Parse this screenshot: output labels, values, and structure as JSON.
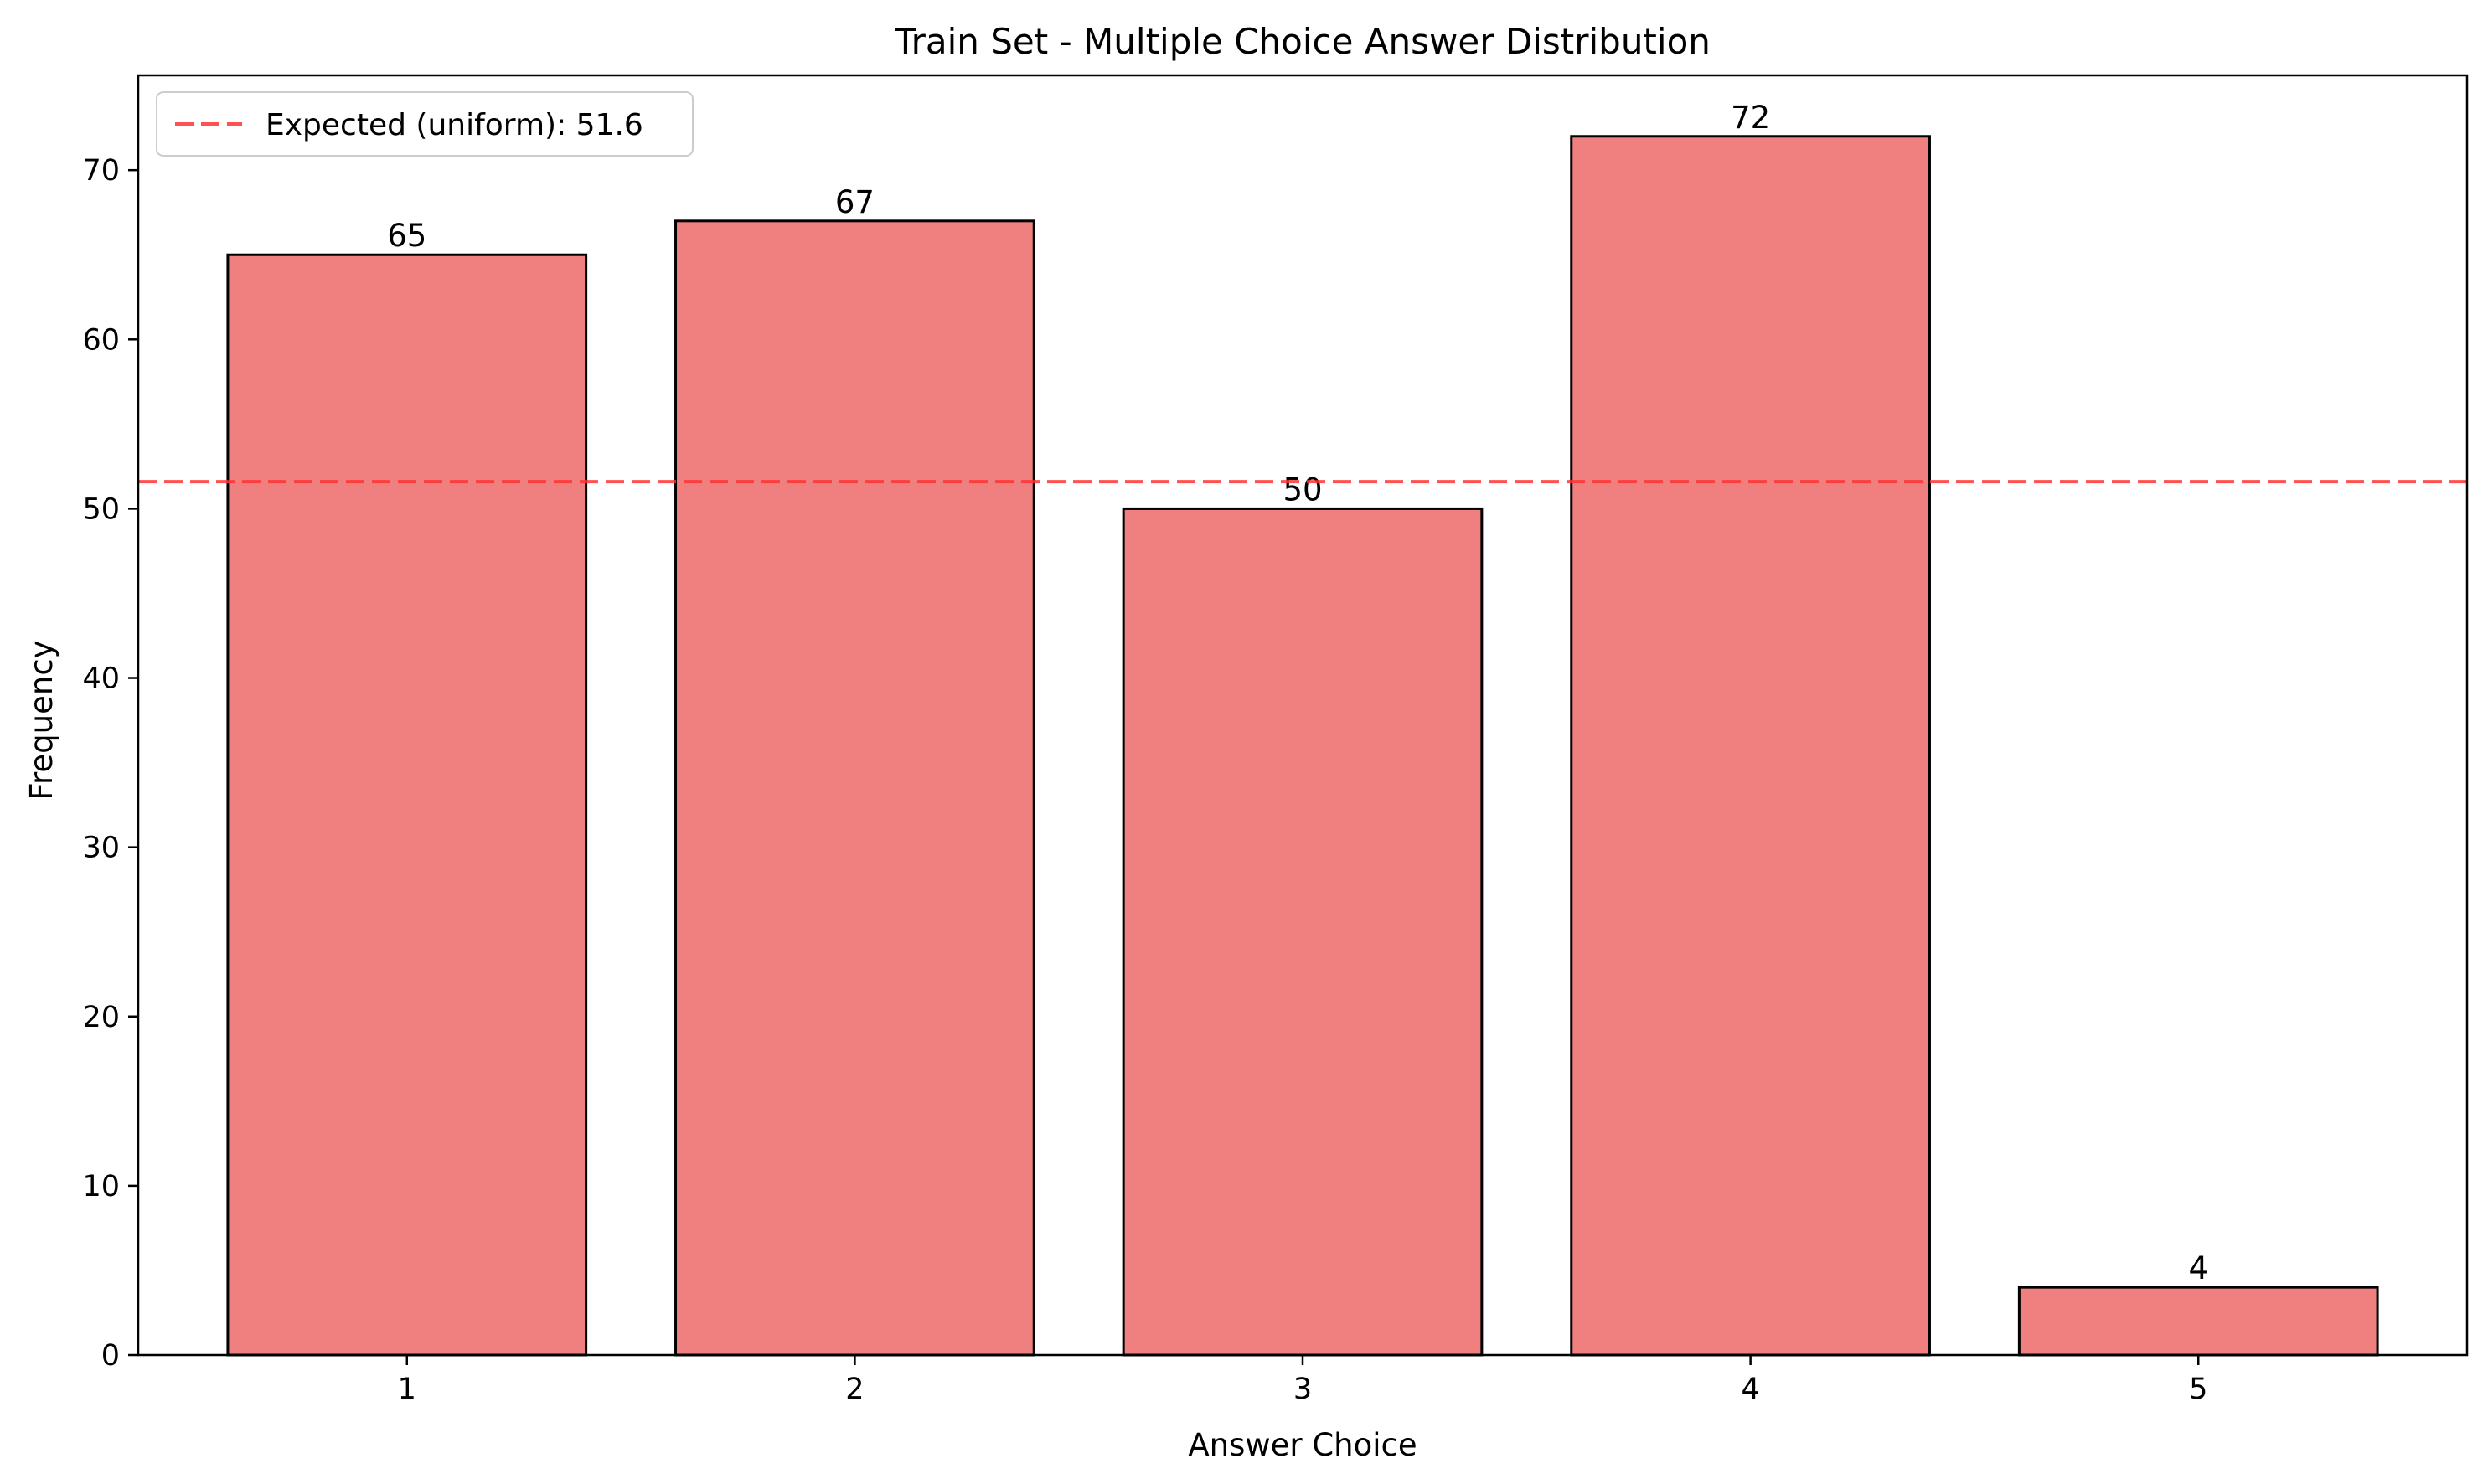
{
  "chart_data": {
    "type": "bar",
    "title": "Train Set - Multiple Choice Answer Distribution",
    "xlabel": "Answer Choice",
    "ylabel": "Frequency",
    "categories": [
      "1",
      "2",
      "3",
      "4",
      "5"
    ],
    "values": [
      65,
      67,
      50,
      72,
      4
    ],
    "data_labels": [
      "65",
      "67",
      "50",
      "72",
      "4"
    ],
    "ylim": [
      0,
      75.6
    ],
    "yticks": [
      0,
      10,
      20,
      30,
      40,
      50,
      60,
      70
    ],
    "grid": false,
    "reference_line": {
      "value": 51.6,
      "label": "Expected (uniform): 51.6",
      "style": "dashed"
    },
    "legend": {
      "placement": "top-left"
    },
    "colors": {
      "bar_fill": "#f08080",
      "bar_edge": "#000000",
      "reference_line": "#ff3333"
    }
  }
}
